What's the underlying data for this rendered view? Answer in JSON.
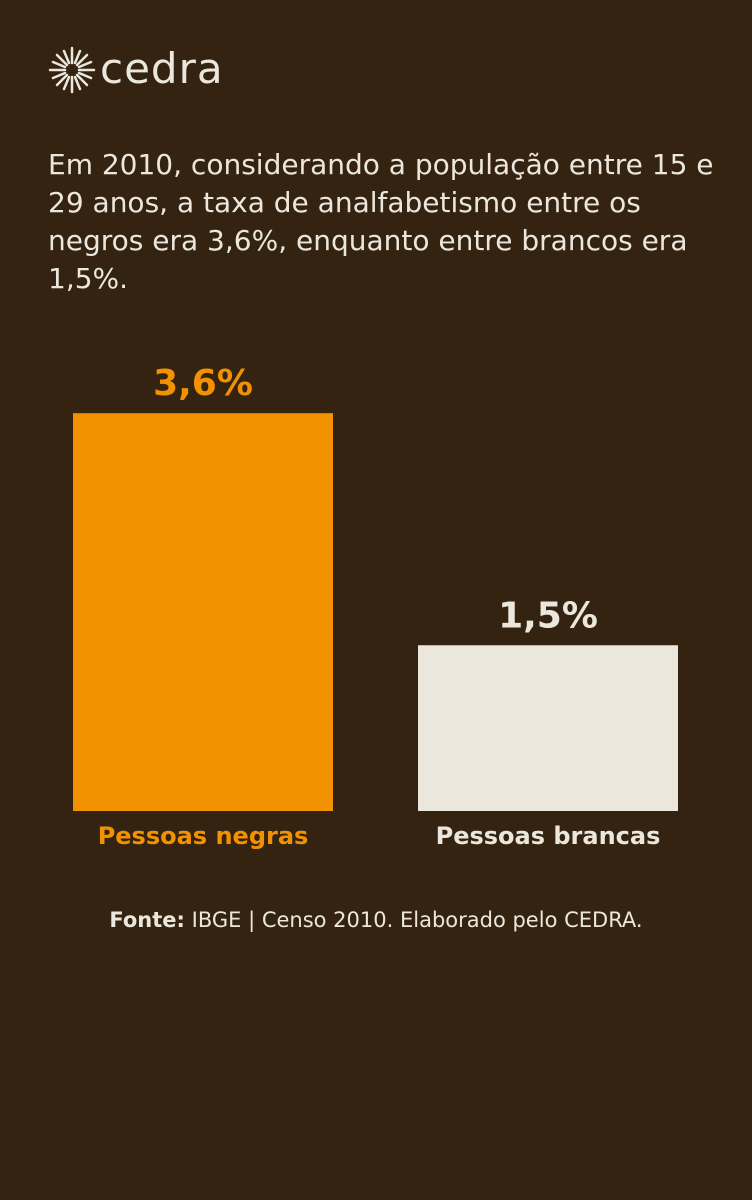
{
  "brand": "cedra",
  "chart_data": {
    "type": "bar",
    "title": "Em 2010, considerando a população entre 15 e 29 anos, a taxa de analfabetismo entre os negros era 3,6%, enquanto entre brancos era 1,5%.",
    "categories": [
      "Pessoas negras",
      "Pessoas brancas"
    ],
    "values": [
      3.6,
      1.5
    ],
    "value_labels": [
      "3,6%",
      "1,5%"
    ],
    "colors": [
      "#f39200",
      "#ebe7dc"
    ],
    "source_label": "Fonte:",
    "source": "IBGE | Censo 2010. Elaborado pelo CEDRA."
  }
}
